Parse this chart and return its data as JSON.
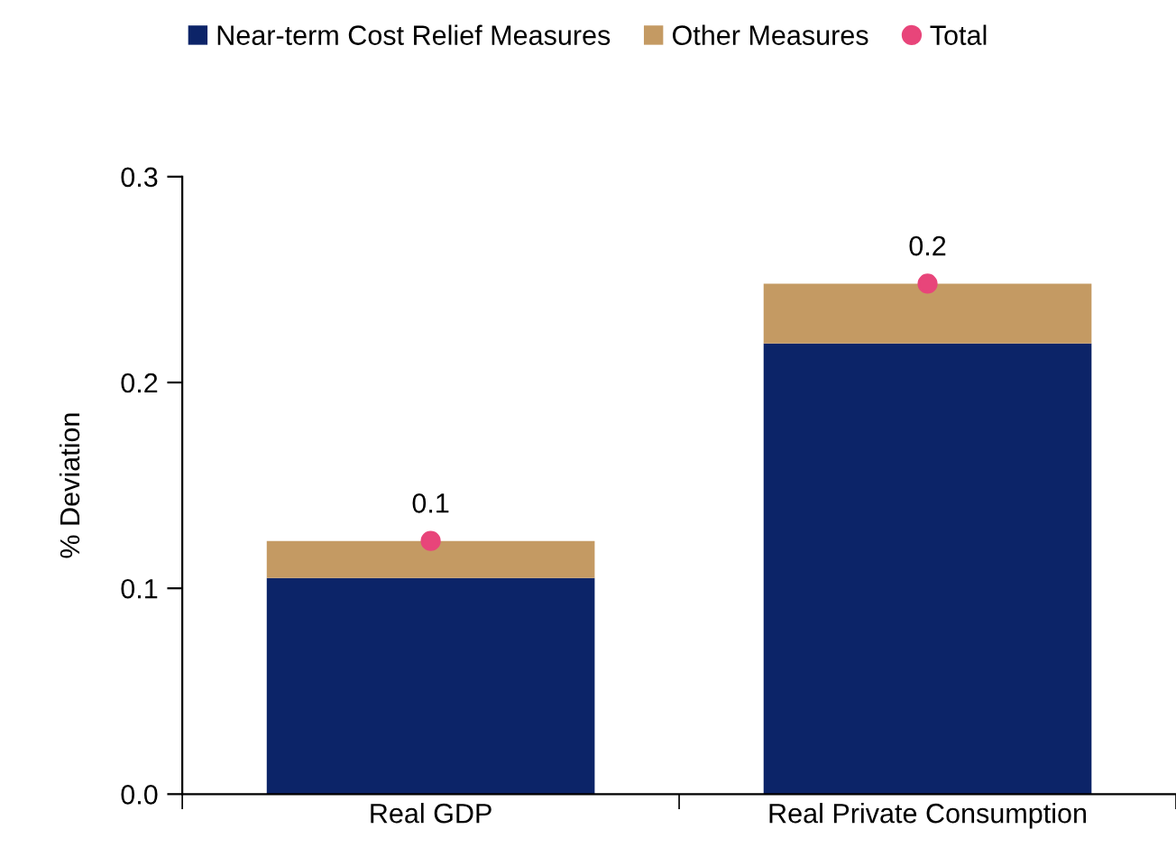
{
  "chart_data": {
    "type": "bar",
    "stacked": true,
    "ylabel": "% Deviation",
    "categories": [
      "Real GDP",
      "Real Private Consumption"
    ],
    "series": [
      {
        "name": "Near-term Cost Relief Measures",
        "color": "#0c2468",
        "values": [
          0.105,
          0.219
        ]
      },
      {
        "name": "Other Measures",
        "color": "#c49a63",
        "values": [
          0.018,
          0.029
        ]
      },
      {
        "name": "Total",
        "type": "scatter",
        "color": "#e8457a",
        "values": [
          0.123,
          0.248
        ],
        "value_labels": [
          "0.1",
          "0.2"
        ]
      }
    ],
    "ylim": [
      0,
      0.3
    ],
    "yticks": [
      "0.0",
      0.1,
      0.2,
      0.3
    ],
    "grid": false,
    "legend": "top",
    "marker": "circle"
  }
}
